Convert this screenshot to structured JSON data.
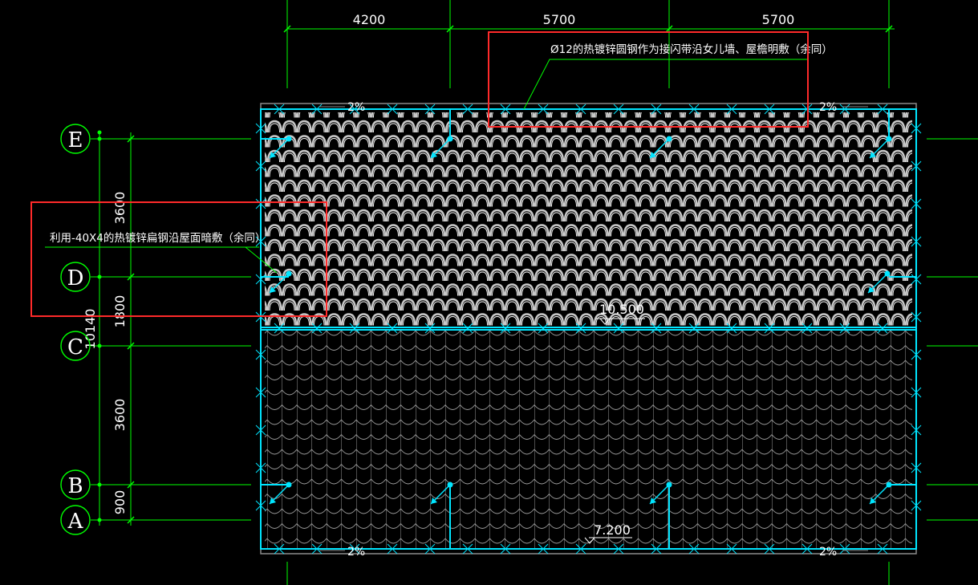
{
  "drawing": {
    "title": "",
    "top_dimensions": [
      "4200",
      "5700",
      "5700"
    ],
    "left_dimensions": [
      "3600",
      "1800",
      "3600",
      "900"
    ],
    "total_dimension": "10140",
    "axis_labels": [
      "E",
      "D",
      "C",
      "B",
      "A"
    ],
    "levels": {
      "upper": "10.500",
      "lower": "7.200"
    },
    "slopes": [
      "2%",
      "2%",
      "2%",
      "2%"
    ],
    "annotations": {
      "top_note": "Ø12的热镀锌圆钢作为接闪带沿女儿墙、屋檐明敷（余同）",
      "left_note": "利用-40X4的热镀锌扁钢沿屋面暗敷（余同）"
    },
    "colors": {
      "background": "#000000",
      "grid": "#00ff00",
      "conductor": "#00e5ff",
      "tile": "#ffffff",
      "highlight": "#ff2a2a"
    }
  }
}
